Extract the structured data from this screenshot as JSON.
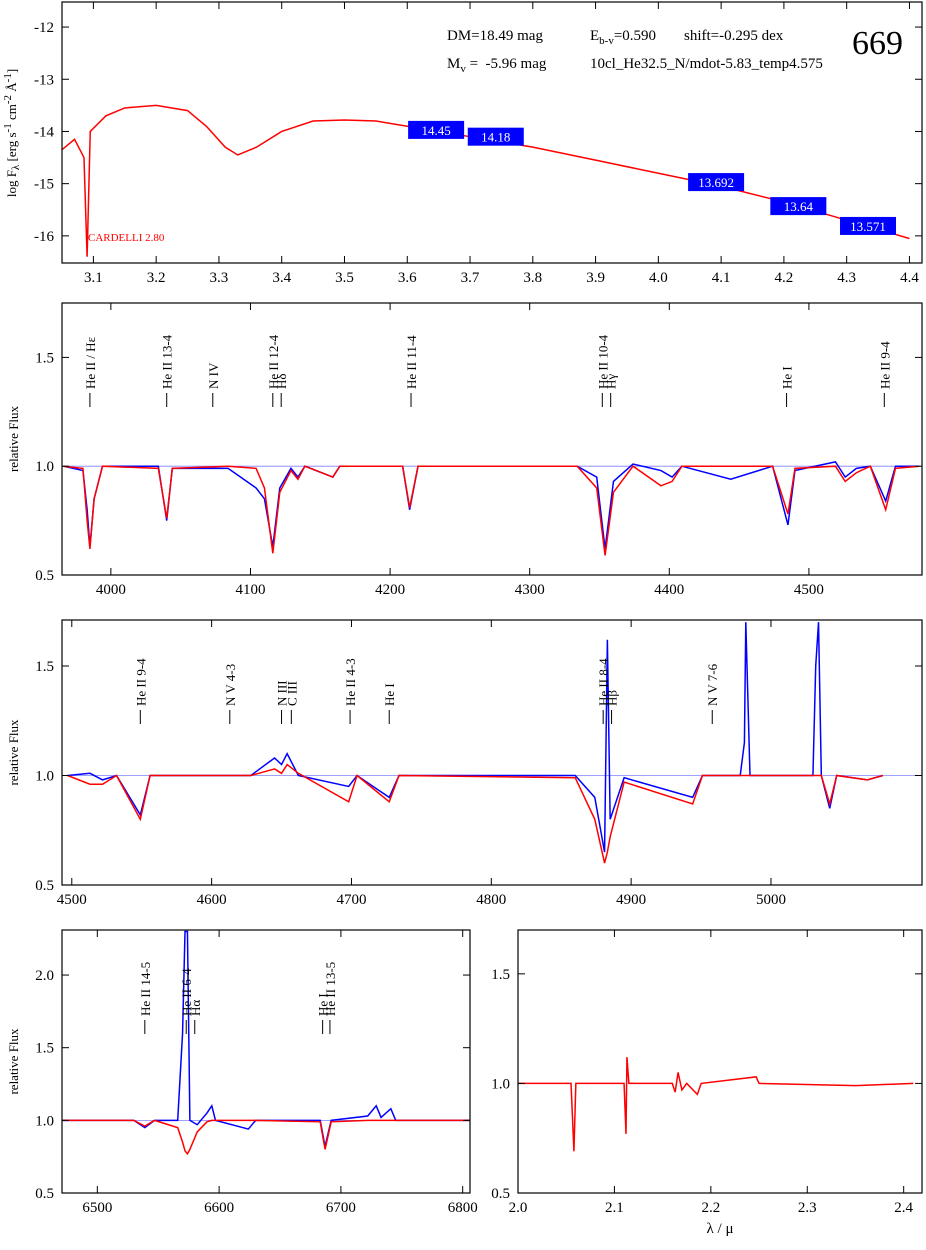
{
  "chart_data": [
    {
      "type": "line",
      "title": "669",
      "annotations": {
        "dm": "DM=18.49 mag",
        "ebv": [
          "E",
          "b-v",
          "=0.590"
        ],
        "shift": "shift=-0.295 dex",
        "mv": [
          "M",
          "v",
          " =  -5.96 mag"
        ],
        "model": "10cl_He32.5_N/mdot-5.83_temp4.575",
        "extinction": "CARDELLI 2.80"
      },
      "y_label": [
        "log F",
        "λ",
        " [erg s",
        "-1",
        " cm",
        "-2",
        " Å",
        "-1",
        "]"
      ],
      "x": [
        3.05,
        3.07,
        3.085,
        3.09,
        3.095,
        3.12,
        3.15,
        3.2,
        3.25,
        3.28,
        3.31,
        3.33,
        3.36,
        3.4,
        3.45,
        3.5,
        3.55,
        3.6,
        3.65,
        3.7,
        3.8,
        3.9,
        4.0,
        4.1,
        4.2,
        4.3,
        4.4
      ],
      "series": [
        {
          "color": "#ff0000",
          "values": [
            -14.35,
            -14.15,
            -14.5,
            -16.4,
            -14.0,
            -13.7,
            -13.55,
            -13.5,
            -13.6,
            -13.9,
            -14.3,
            -14.45,
            -14.3,
            -14.0,
            -13.8,
            -13.78,
            -13.8,
            -13.9,
            -14.0,
            -14.1,
            -14.3,
            -14.55,
            -14.8,
            -15.05,
            -15.35,
            -15.7,
            -16.05
          ]
        }
      ],
      "photometry": [
        {
          "label": "14.45",
          "x": 3.646,
          "y": -13.97
        },
        {
          "label": "14.18",
          "x": 3.741,
          "y": -14.1
        },
        {
          "label": "13.692",
          "x": 4.092,
          "y": -14.97
        },
        {
          "label": "13.64",
          "x": 4.223,
          "y": -15.43
        },
        {
          "label": "13.571",
          "x": 4.334,
          "y": -15.81
        }
      ],
      "photometry_color": "#0000ff",
      "xlim": [
        3.05,
        4.42
      ],
      "ylim": [
        -16.52,
        -11.52
      ],
      "xticks": [
        3.1,
        3.2,
        3.3,
        3.4,
        3.5,
        3.6,
        3.7,
        3.8,
        3.9,
        {
          "value": 4.0,
          "label": "4.0"
        },
        4.1,
        4.2,
        4.3,
        4.4
      ],
      "yticks": [
        -12,
        -13,
        -14,
        -15,
        -16
      ]
    },
    {
      "type": "line",
      "y_label": "relative Flux",
      "reference_line": 1,
      "x": [
        3966,
        3980,
        3983,
        3985,
        3988,
        3994,
        4034,
        4040,
        4044,
        4084,
        4104,
        4110,
        4116,
        4121,
        4129,
        4134,
        4139,
        4159,
        4164,
        4209,
        4214,
        4220,
        4334,
        4348,
        4354,
        4360,
        4374,
        4394,
        4402,
        4409,
        4444,
        4474,
        4485,
        4490,
        4519,
        4526,
        4534,
        4544,
        4555,
        4562,
        4579
      ],
      "series": [
        {
          "color": "#0000ff",
          "values": [
            1.0,
            0.98,
            0.8,
            0.63,
            0.85,
            1.0,
            1.0,
            0.75,
            0.99,
            0.99,
            0.9,
            0.85,
            0.63,
            0.9,
            0.99,
            0.95,
            1.0,
            0.95,
            1.0,
            1.0,
            0.8,
            1.0,
            1.0,
            0.95,
            0.62,
            0.93,
            1.01,
            0.98,
            0.95,
            1.0,
            0.94,
            1.0,
            0.73,
            0.98,
            1.02,
            0.95,
            0.99,
            1.0,
            0.84,
            1.0,
            1.0
          ]
        },
        {
          "color": "#ff0000",
          "values": [
            1.0,
            0.99,
            0.75,
            0.62,
            0.85,
            1.0,
            0.99,
            0.76,
            0.99,
            1.0,
            0.99,
            0.9,
            0.6,
            0.88,
            0.98,
            0.94,
            1.0,
            0.95,
            1.0,
            1.0,
            0.81,
            1.0,
            1.0,
            0.9,
            0.59,
            0.88,
            1.0,
            0.91,
            0.93,
            1.0,
            1.0,
            1.0,
            0.78,
            0.99,
            1.0,
            0.93,
            0.97,
            1.0,
            0.8,
            0.99,
            1.0
          ]
        }
      ],
      "line_ids": [
        {
          "label": "He II / Hε",
          "x": 3985
        },
        {
          "label": "He II 13-4",
          "x": 4040
        },
        {
          "label": "N IV",
          "x": 4073
        },
        {
          "label": "He II 12-4",
          "x": 4116
        },
        {
          "label": "Hδ",
          "x": 4122
        },
        {
          "label": "He II 11-4",
          "x": 4215
        },
        {
          "label": "He II 10-4",
          "x": 4352
        },
        {
          "label": "Hγ",
          "x": 4358
        },
        {
          "label": "He I",
          "x": 4484
        },
        {
          "label": "He II 9-4",
          "x": 4554
        }
      ],
      "xlim": [
        3965,
        4581
      ],
      "ylim": [
        0.5,
        1.75
      ],
      "xticks": [
        4000,
        4100,
        4200,
        4300,
        4400,
        4500
      ],
      "yticks": [
        0.5,
        {
          "value": 1.0,
          "label": "1.0"
        },
        1.5
      ]
    },
    {
      "type": "line",
      "y_label": "relative Flux",
      "reference_line": 1,
      "x": [
        4497,
        4513,
        4522,
        4532,
        4549,
        4556,
        4628,
        4645,
        4650,
        4654,
        4662,
        4698,
        4704,
        4727,
        4734,
        4860,
        4874,
        4881,
        4883,
        4885,
        4895,
        4944,
        4951,
        4978,
        4981,
        4982,
        4985,
        5030,
        5032,
        5034,
        5036,
        5042,
        5047,
        5069,
        5080
      ],
      "series": [
        {
          "color": "#0000ff",
          "values": [
            1.0,
            1.01,
            0.98,
            1.0,
            0.82,
            1.0,
            1.0,
            1.08,
            1.05,
            1.1,
            1.0,
            0.95,
            1.0,
            0.9,
            1.0,
            1.0,
            0.9,
            0.65,
            1.62,
            0.8,
            0.99,
            0.9,
            1.0,
            1.0,
            1.15,
            1.7,
            1.0,
            1.0,
            1.5,
            1.7,
            1.0,
            0.85,
            1.0,
            0.98,
            1.0
          ]
        },
        {
          "color": "#ff0000",
          "values": [
            1.0,
            0.96,
            0.96,
            1.0,
            0.8,
            1.0,
            1.0,
            1.03,
            1.01,
            1.05,
            1.01,
            0.88,
            1.0,
            0.88,
            1.0,
            0.99,
            0.8,
            0.6,
            0.65,
            0.72,
            0.97,
            0.87,
            1.0,
            1.0,
            1.0,
            1.0,
            1.0,
            1.0,
            1.0,
            1.0,
            1.0,
            0.87,
            1.0,
            0.98,
            1.0
          ]
        }
      ],
      "line_ids": [
        {
          "label": "He II 9-4",
          "x": 4549
        },
        {
          "label": "N V 4-3",
          "x": 4613
        },
        {
          "label": "N III",
          "x": 4650
        },
        {
          "label": "C III",
          "x": 4657
        },
        {
          "label": "He II 4-3",
          "x": 4699
        },
        {
          "label": "He I",
          "x": 4727
        },
        {
          "label": "He II 8-4",
          "x": 4880
        },
        {
          "label": "Hβ",
          "x": 4886
        },
        {
          "label": "N V 7-6",
          "x": 4958
        }
      ],
      "xlim": [
        4493,
        5108
      ],
      "ylim": [
        0.5,
        1.71
      ],
      "xticks": [
        4500,
        4600,
        4700,
        4800,
        4900,
        5000
      ],
      "yticks": [
        0.5,
        {
          "value": 1.0,
          "label": "1.0"
        },
        1.5
      ]
    },
    {
      "type": "line",
      "y_label": "relative Flux",
      "reference_line": 1,
      "x": [
        6471,
        6530,
        6539,
        6547,
        6566,
        6570,
        6572,
        6574,
        6576,
        6582,
        6590,
        6594,
        6597,
        6624,
        6630,
        6683,
        6687,
        6692,
        6722,
        6729,
        6733,
        6741,
        6745,
        6806
      ],
      "series": [
        {
          "color": "#0000ff",
          "values": [
            1.0,
            1.0,
            0.95,
            1.0,
            1.0,
            1.6,
            2.3,
            2.3,
            1.0,
            0.97,
            1.05,
            1.1,
            1.0,
            0.94,
            1.0,
            1.0,
            0.82,
            1.0,
            1.03,
            1.1,
            1.02,
            1.08,
            1.0,
            1.0
          ]
        },
        {
          "color": "#ff0000",
          "values": [
            1.0,
            1.0,
            0.96,
            1.0,
            0.95,
            0.85,
            0.79,
            0.77,
            0.8,
            0.92,
            0.99,
            1.0,
            1.0,
            1.0,
            1.0,
            0.99,
            0.8,
            0.99,
            1.0,
            1.0,
            1.0,
            1.0,
            1.0,
            1.0
          ]
        }
      ],
      "line_ids": [
        {
          "label": "He II 14-5",
          "x": 6539
        },
        {
          "label": "He II 6-4",
          "x": 6573
        },
        {
          "label": "Hα",
          "x": 6580
        },
        {
          "label": "He I",
          "x": 6685
        },
        {
          "label": "He II 13-5",
          "x": 6691
        }
      ],
      "xlim": [
        6471,
        6806
      ],
      "ylim": [
        0.5,
        2.31
      ],
      "xticks": [
        6500,
        6600,
        6700,
        6800
      ],
      "yticks": [
        0.5,
        {
          "value": 1.0,
          "label": "1.0"
        },
        1.5,
        {
          "value": 2.0,
          "label": "2.0"
        }
      ]
    },
    {
      "type": "line",
      "x_label": "λ / μ",
      "x": [
        2.0,
        2.055,
        2.058,
        2.06,
        2.11,
        2.112,
        2.113,
        2.115,
        2.16,
        2.163,
        2.166,
        2.17,
        2.175,
        2.186,
        2.19,
        2.247,
        2.25,
        2.35,
        2.41
      ],
      "series": [
        {
          "color": "#ff0000",
          "values": [
            1.0,
            1.0,
            0.69,
            1.0,
            1.0,
            0.77,
            1.12,
            1.0,
            1.0,
            0.96,
            1.05,
            0.97,
            1.0,
            0.95,
            1.0,
            1.03,
            1.0,
            0.99,
            1.0
          ]
        }
      ],
      "xlim": [
        2.0,
        2.419
      ],
      "ylim": [
        0.5,
        1.7
      ],
      "xticks": [
        {
          "value": 2.0,
          "label": "2.0"
        },
        2.1,
        2.2,
        2.3,
        2.4
      ],
      "yticks": [
        0.5,
        {
          "value": 1.0,
          "label": "1.0"
        },
        1.5
      ]
    }
  ]
}
